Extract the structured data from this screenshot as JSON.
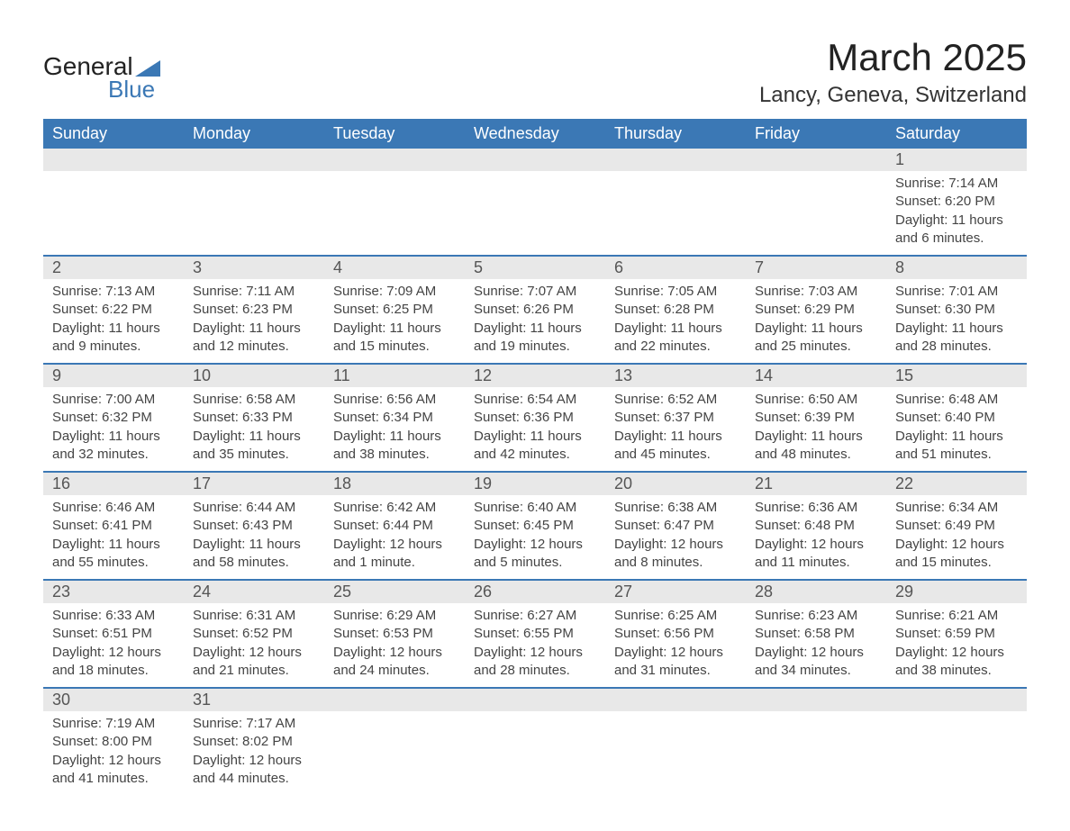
{
  "logo": {
    "word1": "General",
    "word2": "Blue",
    "triangle_color": "#3b78b5"
  },
  "title": "March 2025",
  "location": "Lancy, Geneva, Switzerland",
  "header_bg": "#3b78b5",
  "header_fg": "#ffffff",
  "daybar_bg": "#e8e8e8",
  "row_border_color": "#3b78b5",
  "text_color": "#444444",
  "columns": [
    "Sunday",
    "Monday",
    "Tuesday",
    "Wednesday",
    "Thursday",
    "Friday",
    "Saturday"
  ],
  "weeks": [
    [
      null,
      null,
      null,
      null,
      null,
      null,
      {
        "n": "1",
        "sunrise": "Sunrise: 7:14 AM",
        "sunset": "Sunset: 6:20 PM",
        "day1": "Daylight: 11 hours",
        "day2": "and 6 minutes."
      }
    ],
    [
      {
        "n": "2",
        "sunrise": "Sunrise: 7:13 AM",
        "sunset": "Sunset: 6:22 PM",
        "day1": "Daylight: 11 hours",
        "day2": "and 9 minutes."
      },
      {
        "n": "3",
        "sunrise": "Sunrise: 7:11 AM",
        "sunset": "Sunset: 6:23 PM",
        "day1": "Daylight: 11 hours",
        "day2": "and 12 minutes."
      },
      {
        "n": "4",
        "sunrise": "Sunrise: 7:09 AM",
        "sunset": "Sunset: 6:25 PM",
        "day1": "Daylight: 11 hours",
        "day2": "and 15 minutes."
      },
      {
        "n": "5",
        "sunrise": "Sunrise: 7:07 AM",
        "sunset": "Sunset: 6:26 PM",
        "day1": "Daylight: 11 hours",
        "day2": "and 19 minutes."
      },
      {
        "n": "6",
        "sunrise": "Sunrise: 7:05 AM",
        "sunset": "Sunset: 6:28 PM",
        "day1": "Daylight: 11 hours",
        "day2": "and 22 minutes."
      },
      {
        "n": "7",
        "sunrise": "Sunrise: 7:03 AM",
        "sunset": "Sunset: 6:29 PM",
        "day1": "Daylight: 11 hours",
        "day2": "and 25 minutes."
      },
      {
        "n": "8",
        "sunrise": "Sunrise: 7:01 AM",
        "sunset": "Sunset: 6:30 PM",
        "day1": "Daylight: 11 hours",
        "day2": "and 28 minutes."
      }
    ],
    [
      {
        "n": "9",
        "sunrise": "Sunrise: 7:00 AM",
        "sunset": "Sunset: 6:32 PM",
        "day1": "Daylight: 11 hours",
        "day2": "and 32 minutes."
      },
      {
        "n": "10",
        "sunrise": "Sunrise: 6:58 AM",
        "sunset": "Sunset: 6:33 PM",
        "day1": "Daylight: 11 hours",
        "day2": "and 35 minutes."
      },
      {
        "n": "11",
        "sunrise": "Sunrise: 6:56 AM",
        "sunset": "Sunset: 6:34 PM",
        "day1": "Daylight: 11 hours",
        "day2": "and 38 minutes."
      },
      {
        "n": "12",
        "sunrise": "Sunrise: 6:54 AM",
        "sunset": "Sunset: 6:36 PM",
        "day1": "Daylight: 11 hours",
        "day2": "and 42 minutes."
      },
      {
        "n": "13",
        "sunrise": "Sunrise: 6:52 AM",
        "sunset": "Sunset: 6:37 PM",
        "day1": "Daylight: 11 hours",
        "day2": "and 45 minutes."
      },
      {
        "n": "14",
        "sunrise": "Sunrise: 6:50 AM",
        "sunset": "Sunset: 6:39 PM",
        "day1": "Daylight: 11 hours",
        "day2": "and 48 minutes."
      },
      {
        "n": "15",
        "sunrise": "Sunrise: 6:48 AM",
        "sunset": "Sunset: 6:40 PM",
        "day1": "Daylight: 11 hours",
        "day2": "and 51 minutes."
      }
    ],
    [
      {
        "n": "16",
        "sunrise": "Sunrise: 6:46 AM",
        "sunset": "Sunset: 6:41 PM",
        "day1": "Daylight: 11 hours",
        "day2": "and 55 minutes."
      },
      {
        "n": "17",
        "sunrise": "Sunrise: 6:44 AM",
        "sunset": "Sunset: 6:43 PM",
        "day1": "Daylight: 11 hours",
        "day2": "and 58 minutes."
      },
      {
        "n": "18",
        "sunrise": "Sunrise: 6:42 AM",
        "sunset": "Sunset: 6:44 PM",
        "day1": "Daylight: 12 hours",
        "day2": "and 1 minute."
      },
      {
        "n": "19",
        "sunrise": "Sunrise: 6:40 AM",
        "sunset": "Sunset: 6:45 PM",
        "day1": "Daylight: 12 hours",
        "day2": "and 5 minutes."
      },
      {
        "n": "20",
        "sunrise": "Sunrise: 6:38 AM",
        "sunset": "Sunset: 6:47 PM",
        "day1": "Daylight: 12 hours",
        "day2": "and 8 minutes."
      },
      {
        "n": "21",
        "sunrise": "Sunrise: 6:36 AM",
        "sunset": "Sunset: 6:48 PM",
        "day1": "Daylight: 12 hours",
        "day2": "and 11 minutes."
      },
      {
        "n": "22",
        "sunrise": "Sunrise: 6:34 AM",
        "sunset": "Sunset: 6:49 PM",
        "day1": "Daylight: 12 hours",
        "day2": "and 15 minutes."
      }
    ],
    [
      {
        "n": "23",
        "sunrise": "Sunrise: 6:33 AM",
        "sunset": "Sunset: 6:51 PM",
        "day1": "Daylight: 12 hours",
        "day2": "and 18 minutes."
      },
      {
        "n": "24",
        "sunrise": "Sunrise: 6:31 AM",
        "sunset": "Sunset: 6:52 PM",
        "day1": "Daylight: 12 hours",
        "day2": "and 21 minutes."
      },
      {
        "n": "25",
        "sunrise": "Sunrise: 6:29 AM",
        "sunset": "Sunset: 6:53 PM",
        "day1": "Daylight: 12 hours",
        "day2": "and 24 minutes."
      },
      {
        "n": "26",
        "sunrise": "Sunrise: 6:27 AM",
        "sunset": "Sunset: 6:55 PM",
        "day1": "Daylight: 12 hours",
        "day2": "and 28 minutes."
      },
      {
        "n": "27",
        "sunrise": "Sunrise: 6:25 AM",
        "sunset": "Sunset: 6:56 PM",
        "day1": "Daylight: 12 hours",
        "day2": "and 31 minutes."
      },
      {
        "n": "28",
        "sunrise": "Sunrise: 6:23 AM",
        "sunset": "Sunset: 6:58 PM",
        "day1": "Daylight: 12 hours",
        "day2": "and 34 minutes."
      },
      {
        "n": "29",
        "sunrise": "Sunrise: 6:21 AM",
        "sunset": "Sunset: 6:59 PM",
        "day1": "Daylight: 12 hours",
        "day2": "and 38 minutes."
      }
    ],
    [
      {
        "n": "30",
        "sunrise": "Sunrise: 7:19 AM",
        "sunset": "Sunset: 8:00 PM",
        "day1": "Daylight: 12 hours",
        "day2": "and 41 minutes."
      },
      {
        "n": "31",
        "sunrise": "Sunrise: 7:17 AM",
        "sunset": "Sunset: 8:02 PM",
        "day1": "Daylight: 12 hours",
        "day2": "and 44 minutes."
      },
      null,
      null,
      null,
      null,
      null
    ]
  ]
}
